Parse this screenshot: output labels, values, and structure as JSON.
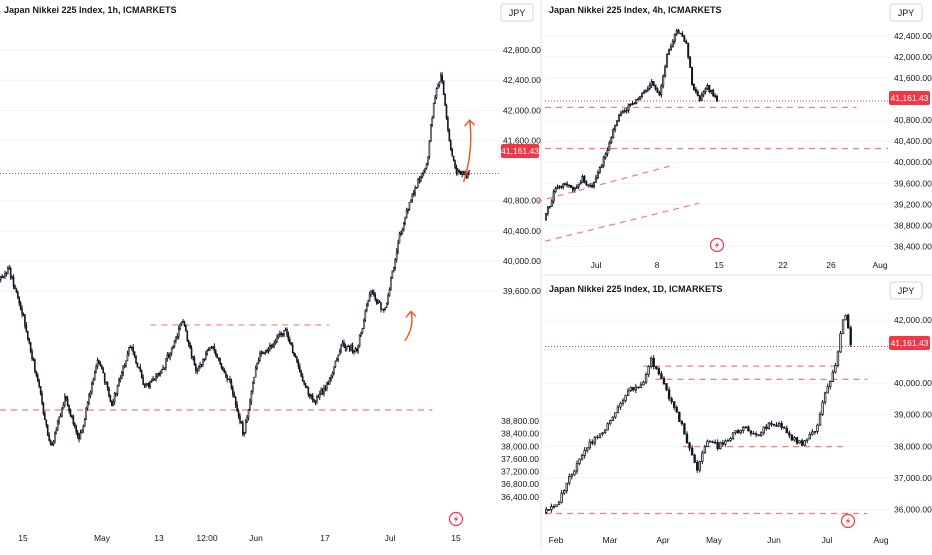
{
  "currency": "JPY",
  "last_price_label": "41,161.43",
  "last_price": 41161.43,
  "colors": {
    "candle": "#131722",
    "price_line": "#f23645",
    "level_line": "#f77c80",
    "arrow": "#f4511e",
    "axis_text": "#131722",
    "grid": "#f0f3fa",
    "badge_border": "#d1d4dc"
  },
  "icons": {
    "flash": "flash-icon"
  },
  "chart_data": [
    {
      "id": "1h",
      "type": "candlestick",
      "title": "Japan Nikkei 225 Index, 1h, ICMARKETS",
      "ylim": [
        36400,
        43200
      ],
      "y_ticks": [
        {
          "value": 39600,
          "label": "39,600.00"
        },
        {
          "value": 40000,
          "label": "40,000.00"
        },
        {
          "value": 40400,
          "label": "40,400.00"
        },
        {
          "value": 40800,
          "label": "40,800.00"
        },
        {
          "value": 41600,
          "label": "41,600.00"
        },
        {
          "value": 42000,
          "label": "42,000.00"
        },
        {
          "value": 42400,
          "label": "42,400.00"
        },
        {
          "value": 42800,
          "label": "42,800.00"
        }
      ],
      "x_ticks": [
        "15",
        "May",
        "13",
        "12:00",
        "Jun",
        "17",
        "Jul",
        "15"
      ],
      "candle_count": 330,
      "path": [
        [
          0,
          39750
        ],
        [
          0.02,
          39900
        ],
        [
          0.05,
          39300
        ],
        [
          0.08,
          38450
        ],
        [
          0.11,
          37500
        ],
        [
          0.14,
          38200
        ],
        [
          0.17,
          37600
        ],
        [
          0.21,
          38700
        ],
        [
          0.24,
          38100
        ],
        [
          0.28,
          38900
        ],
        [
          0.31,
          38300
        ],
        [
          0.35,
          38600
        ],
        [
          0.39,
          39200
        ],
        [
          0.42,
          38500
        ],
        [
          0.45,
          38900
        ],
        [
          0.49,
          38400
        ],
        [
          0.52,
          37700
        ],
        [
          0.55,
          38700
        ],
        [
          0.58,
          38900
        ],
        [
          0.61,
          39100
        ],
        [
          0.64,
          38500
        ],
        [
          0.67,
          38100
        ],
        [
          0.7,
          38400
        ],
        [
          0.73,
          38900
        ],
        [
          0.76,
          38800
        ],
        [
          0.79,
          39600
        ],
        [
          0.82,
          39300
        ],
        [
          0.85,
          40300
        ],
        [
          0.88,
          40900
        ],
        [
          0.91,
          41300
        ],
        [
          0.925,
          42150
        ],
        [
          0.94,
          42480
        ],
        [
          0.955,
          41700
        ],
        [
          0.97,
          41200
        ],
        [
          0.985,
          41150
        ],
        [
          1,
          41160
        ]
      ],
      "levels": [
        {
          "value": 39150,
          "from": 0.32,
          "to": 0.7
        },
        {
          "value": 38020,
          "from": 0.0,
          "to": 0.92
        }
      ],
      "arrows": [
        {
          "at": 0.87,
          "from": 38940,
          "to": 39330
        },
        {
          "at": 0.995,
          "from": 41050,
          "to": 41870
        }
      ]
    },
    {
      "id": "4h",
      "type": "candlestick",
      "title": "Japan Nikkei 225 Index, 4h, ICMARKETS",
      "ylim": [
        38200,
        42700
      ],
      "y_ticks": [
        {
          "value": 38400,
          "label": "38,400.00"
        },
        {
          "value": 38800,
          "label": "38,800.00"
        },
        {
          "value": 39200,
          "label": "39,200.00"
        },
        {
          "value": 39600,
          "label": "39,600.00"
        },
        {
          "value": 40000,
          "label": "40,000.00"
        },
        {
          "value": 40400,
          "label": "40,400.00"
        },
        {
          "value": 40800,
          "label": "40,800.00"
        },
        {
          "value": 41600,
          "label": "41,600.00"
        },
        {
          "value": 42000,
          "label": "42,000.00"
        },
        {
          "value": 42400,
          "label": "42,400.00"
        }
      ],
      "x_ticks": [
        "Jul",
        "8",
        "15",
        "22",
        "26",
        "Aug"
      ],
      "candle_count": 90,
      "path": [
        [
          0,
          38900
        ],
        [
          0.06,
          39450
        ],
        [
          0.12,
          39600
        ],
        [
          0.18,
          39450
        ],
        [
          0.22,
          39700
        ],
        [
          0.27,
          39500
        ],
        [
          0.32,
          39850
        ],
        [
          0.37,
          40300
        ],
        [
          0.42,
          40800
        ],
        [
          0.47,
          41000
        ],
        [
          0.52,
          41150
        ],
        [
          0.57,
          41300
        ],
        [
          0.62,
          41500
        ],
        [
          0.67,
          41300
        ],
        [
          0.72,
          42150
        ],
        [
          0.77,
          42500
        ],
        [
          0.82,
          42300
        ],
        [
          0.86,
          41400
        ],
        [
          0.9,
          41150
        ],
        [
          0.94,
          41450
        ],
        [
          1,
          41160
        ]
      ],
      "levels": [
        {
          "value": 41040,
          "from": 0.0,
          "to": 1.8
        },
        {
          "value": 40260,
          "from": 0.0,
          "to": 2.0
        }
      ],
      "trendlines": [
        {
          "x0": -0.05,
          "y0": 39250,
          "x1": 0.75,
          "y1": 39950
        },
        {
          "x0": 0.0,
          "y0": 38500,
          "x1": 0.89,
          "y1": 39220
        }
      ]
    },
    {
      "id": "1d",
      "type": "candlestick",
      "title": "Japan Nikkei 225 Index, 1D, ICMARKETS",
      "ylim": [
        35600,
        42700
      ],
      "y_ticks": [
        {
          "value": 36000,
          "label": "36,000.00"
        },
        {
          "value": 37000,
          "label": "37,000.00"
        },
        {
          "value": 38000,
          "label": "38,000.00"
        },
        {
          "value": 39000,
          "label": "39,000.00"
        },
        {
          "value": 40000,
          "label": "40,000.00"
        },
        {
          "value": 42000,
          "label": "42,000.00"
        }
      ],
      "left_ticks": [
        {
          "value": 36400,
          "label": "36,400.00"
        },
        {
          "value": 36800,
          "label": "36,800.00"
        },
        {
          "value": 37200,
          "label": "37,200.00"
        },
        {
          "value": 37600,
          "label": "37,600.00"
        },
        {
          "value": 38000,
          "label": "38,000.00"
        },
        {
          "value": 38400,
          "label": "38,400.00"
        },
        {
          "value": 38800,
          "label": "38,800.00"
        }
      ],
      "x_ticks": [
        "Feb",
        "Mar",
        "Apr",
        "May",
        "Jun",
        "Jul",
        "Aug"
      ],
      "candle_count": 120,
      "path": [
        [
          0,
          35900
        ],
        [
          0.04,
          36100
        ],
        [
          0.08,
          36900
        ],
        [
          0.12,
          37600
        ],
        [
          0.16,
          38200
        ],
        [
          0.2,
          38600
        ],
        [
          0.24,
          39200
        ],
        [
          0.28,
          39800
        ],
        [
          0.32,
          40000
        ],
        [
          0.35,
          40700
        ],
        [
          0.38,
          40300
        ],
        [
          0.41,
          39500
        ],
        [
          0.44,
          38900
        ],
        [
          0.47,
          38100
        ],
        [
          0.5,
          37300
        ],
        [
          0.53,
          38200
        ],
        [
          0.57,
          38000
        ],
        [
          0.61,
          38300
        ],
        [
          0.65,
          38600
        ],
        [
          0.69,
          38300
        ],
        [
          0.73,
          38700
        ],
        [
          0.77,
          38700
        ],
        [
          0.81,
          38200
        ],
        [
          0.85,
          38100
        ],
        [
          0.89,
          38600
        ],
        [
          0.92,
          39800
        ],
        [
          0.95,
          40500
        ],
        [
          0.97,
          41800
        ],
        [
          0.985,
          42200
        ],
        [
          1,
          41160
        ]
      ],
      "levels": [
        {
          "value": 40540,
          "from": 0.32,
          "to": 0.95
        },
        {
          "value": 40120,
          "from": 0.36,
          "to": 1.05
        },
        {
          "value": 37990,
          "from": 0.45,
          "to": 0.97
        },
        {
          "value": 35870,
          "from": 0.0,
          "to": 1.05
        }
      ]
    }
  ]
}
